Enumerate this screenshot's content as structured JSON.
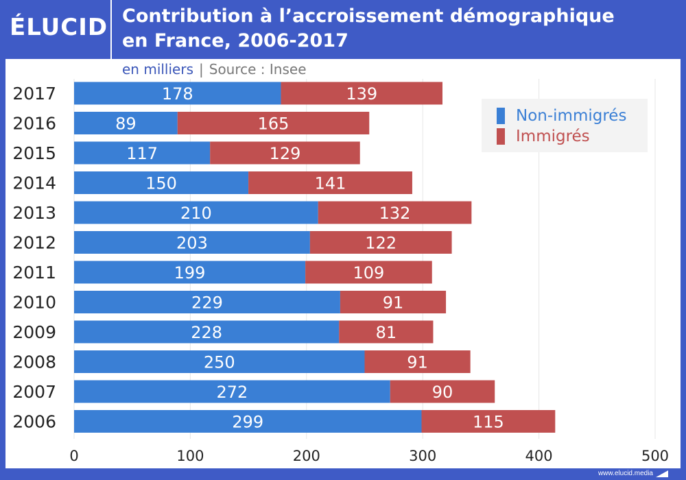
{
  "brand": {
    "logo": "ÉLUCID",
    "url": "www.elucid.media"
  },
  "header": {
    "title_line1": "Contribution à l’accroissement démographique",
    "title_line2": "en France, 2006-2017"
  },
  "subtitle": {
    "unit": "en milliers",
    "separator": "|",
    "source": "Source : Insee"
  },
  "colors": {
    "non_immigres": "#3a7fd5",
    "immigres": "#c05050",
    "header_bg": "#3f5bc6"
  },
  "chart_data": {
    "type": "bar",
    "orientation": "horizontal",
    "stacked": true,
    "title": "Contribution à l’accroissement démographique en France, 2006-2017",
    "subtitle": "en milliers | Source : Insee",
    "xlabel": "",
    "ylabel": "",
    "categories": [
      "2017",
      "2016",
      "2015",
      "2014",
      "2013",
      "2012",
      "2011",
      "2010",
      "2009",
      "2008",
      "2007",
      "2006"
    ],
    "series": [
      {
        "name": "Non-immigrés",
        "color": "#3a7fd5",
        "values": [
          178,
          89,
          117,
          150,
          210,
          203,
          199,
          229,
          228,
          250,
          272,
          299
        ]
      },
      {
        "name": "Immigrés",
        "color": "#c05050",
        "values": [
          139,
          165,
          129,
          141,
          132,
          122,
          109,
          91,
          81,
          91,
          90,
          115
        ]
      }
    ],
    "xlim": [
      0,
      500
    ],
    "xticks": [
      0,
      100,
      200,
      300,
      400,
      500
    ],
    "grid": true,
    "legend_position": "top-right"
  }
}
